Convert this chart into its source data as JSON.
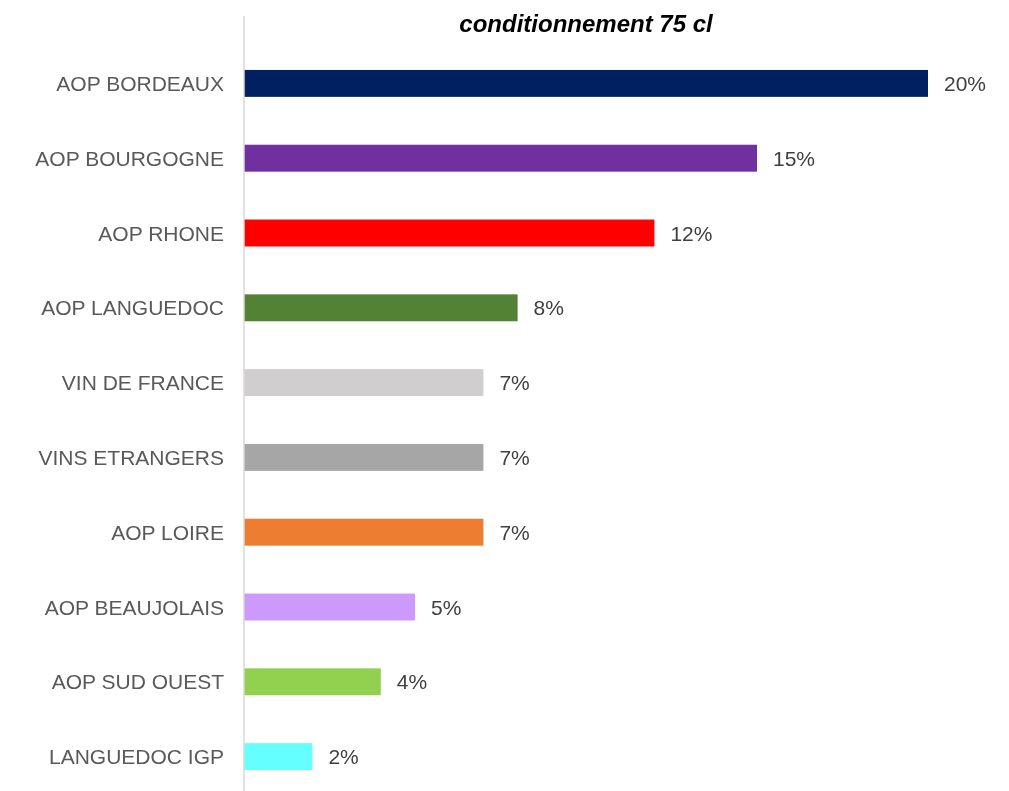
{
  "chart_data": {
    "type": "bar",
    "orientation": "horizontal",
    "title": "conditionnement 75 cl",
    "categories": [
      "AOP BORDEAUX",
      "AOP BOURGOGNE",
      "AOP RHONE",
      "AOP LANGUEDOC",
      "VIN DE FRANCE",
      "VINS ETRANGERS",
      "AOP LOIRE",
      "AOP BEAUJOLAIS",
      "AOP SUD OUEST",
      "LANGUEDOC IGP"
    ],
    "values": [
      20,
      15,
      12,
      8,
      7,
      7,
      7,
      5,
      4,
      2
    ],
    "colors": [
      "#002060",
      "#7030a0",
      "#ff0000",
      "#548235",
      "#d0cece",
      "#a6a6a6",
      "#ed7d31",
      "#cc99ff",
      "#92d050",
      "#66ffff"
    ],
    "value_labels": [
      "20%",
      "15%",
      "12%",
      "8%",
      "7%",
      "7%",
      "7%",
      "5%",
      "4%",
      "2%"
    ]
  }
}
